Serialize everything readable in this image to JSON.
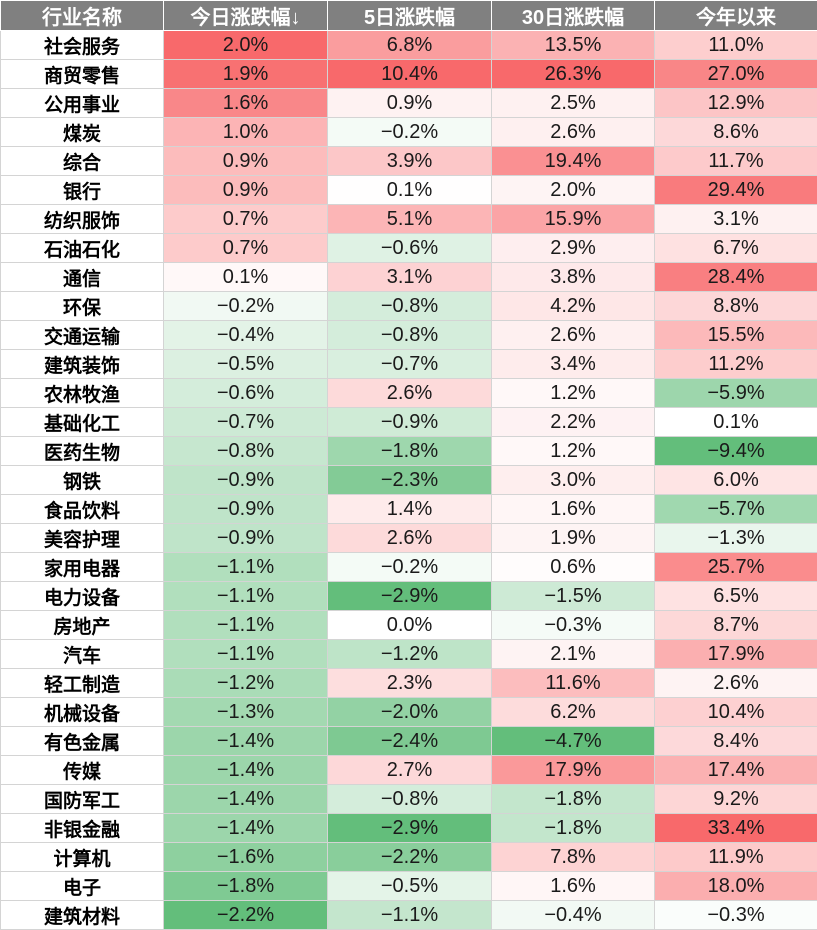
{
  "chart_data": {
    "type": "table",
    "columns": [
      "行业名称",
      "今日涨跌幅↓",
      "5日涨跌幅",
      "30日涨跌幅",
      "今年以来"
    ],
    "rows": [
      {
        "name": "社会服务",
        "values": [
          2.0,
          6.8,
          13.5,
          11.0
        ],
        "labels": [
          "2.0%",
          "6.8%",
          "13.5%",
          "11.0%"
        ]
      },
      {
        "name": "商贸零售",
        "values": [
          1.9,
          10.4,
          26.3,
          27.0
        ],
        "labels": [
          "1.9%",
          "10.4%",
          "26.3%",
          "27.0%"
        ]
      },
      {
        "name": "公用事业",
        "values": [
          1.6,
          0.9,
          2.5,
          12.9
        ],
        "labels": [
          "1.6%",
          "0.9%",
          "2.5%",
          "12.9%"
        ]
      },
      {
        "name": "煤炭",
        "values": [
          1.0,
          -0.2,
          2.6,
          8.6
        ],
        "labels": [
          "1.0%",
          "−0.2%",
          "2.6%",
          "8.6%"
        ]
      },
      {
        "name": "综合",
        "values": [
          0.9,
          3.9,
          19.4,
          11.7
        ],
        "labels": [
          "0.9%",
          "3.9%",
          "19.4%",
          "11.7%"
        ]
      },
      {
        "name": "银行",
        "values": [
          0.9,
          0.1,
          2.0,
          29.4
        ],
        "labels": [
          "0.9%",
          "0.1%",
          "2.0%",
          "29.4%"
        ]
      },
      {
        "name": "纺织服饰",
        "values": [
          0.7,
          5.1,
          15.9,
          3.1
        ],
        "labels": [
          "0.7%",
          "5.1%",
          "15.9%",
          "3.1%"
        ]
      },
      {
        "name": "石油石化",
        "values": [
          0.7,
          -0.6,
          2.9,
          6.7
        ],
        "labels": [
          "0.7%",
          "−0.6%",
          "2.9%",
          "6.7%"
        ]
      },
      {
        "name": "通信",
        "values": [
          0.1,
          3.1,
          3.8,
          28.4
        ],
        "labels": [
          "0.1%",
          "3.1%",
          "3.8%",
          "28.4%"
        ]
      },
      {
        "name": "环保",
        "values": [
          -0.2,
          -0.8,
          4.2,
          8.8
        ],
        "labels": [
          "−0.2%",
          "−0.8%",
          "4.2%",
          "8.8%"
        ]
      },
      {
        "name": "交通运输",
        "values": [
          -0.4,
          -0.8,
          2.6,
          15.5
        ],
        "labels": [
          "−0.4%",
          "−0.8%",
          "2.6%",
          "15.5%"
        ]
      },
      {
        "name": "建筑装饰",
        "values": [
          -0.5,
          -0.7,
          3.4,
          11.2
        ],
        "labels": [
          "−0.5%",
          "−0.7%",
          "3.4%",
          "11.2%"
        ]
      },
      {
        "name": "农林牧渔",
        "values": [
          -0.6,
          2.6,
          1.2,
          -5.9
        ],
        "labels": [
          "−0.6%",
          "2.6%",
          "1.2%",
          "−5.9%"
        ]
      },
      {
        "name": "基础化工",
        "values": [
          -0.7,
          -0.9,
          2.2,
          0.1
        ],
        "labels": [
          "−0.7%",
          "−0.9%",
          "2.2%",
          "0.1%"
        ]
      },
      {
        "name": "医药生物",
        "values": [
          -0.8,
          -1.8,
          1.2,
          -9.4
        ],
        "labels": [
          "−0.8%",
          "−1.8%",
          "1.2%",
          "−9.4%"
        ]
      },
      {
        "name": "钢铁",
        "values": [
          -0.9,
          -2.3,
          3.0,
          6.0
        ],
        "labels": [
          "−0.9%",
          "−2.3%",
          "3.0%",
          "6.0%"
        ]
      },
      {
        "name": "食品饮料",
        "values": [
          -0.9,
          1.4,
          1.6,
          -5.7
        ],
        "labels": [
          "−0.9%",
          "1.4%",
          "1.6%",
          "−5.7%"
        ]
      },
      {
        "name": "美容护理",
        "values": [
          -0.9,
          2.6,
          1.9,
          -1.3
        ],
        "labels": [
          "−0.9%",
          "2.6%",
          "1.9%",
          "−1.3%"
        ]
      },
      {
        "name": "家用电器",
        "values": [
          -1.1,
          -0.2,
          0.6,
          25.7
        ],
        "labels": [
          "−1.1%",
          "−0.2%",
          "0.6%",
          "25.7%"
        ]
      },
      {
        "name": "电力设备",
        "values": [
          -1.1,
          -2.9,
          -1.5,
          6.5
        ],
        "labels": [
          "−1.1%",
          "−2.9%",
          "−1.5%",
          "6.5%"
        ]
      },
      {
        "name": "房地产",
        "values": [
          -1.1,
          0.0,
          -0.3,
          8.7
        ],
        "labels": [
          "−1.1%",
          "0.0%",
          "−0.3%",
          "8.7%"
        ]
      },
      {
        "name": "汽车",
        "values": [
          -1.1,
          -1.2,
          2.1,
          17.9
        ],
        "labels": [
          "−1.1%",
          "−1.2%",
          "2.1%",
          "17.9%"
        ]
      },
      {
        "name": "轻工制造",
        "values": [
          -1.2,
          2.3,
          11.6,
          2.6
        ],
        "labels": [
          "−1.2%",
          "2.3%",
          "11.6%",
          "2.6%"
        ]
      },
      {
        "name": "机械设备",
        "values": [
          -1.3,
          -2.0,
          6.2,
          10.4
        ],
        "labels": [
          "−1.3%",
          "−2.0%",
          "6.2%",
          "10.4%"
        ]
      },
      {
        "name": "有色金属",
        "values": [
          -1.4,
          -2.4,
          -4.7,
          8.4
        ],
        "labels": [
          "−1.4%",
          "−2.4%",
          "−4.7%",
          "8.4%"
        ]
      },
      {
        "name": "传媒",
        "values": [
          -1.4,
          2.7,
          17.9,
          17.4
        ],
        "labels": [
          "−1.4%",
          "2.7%",
          "17.9%",
          "17.4%"
        ]
      },
      {
        "name": "国防军工",
        "values": [
          -1.4,
          -0.8,
          -1.8,
          9.2
        ],
        "labels": [
          "−1.4%",
          "−0.8%",
          "−1.8%",
          "9.2%"
        ]
      },
      {
        "name": "非银金融",
        "values": [
          -1.4,
          -2.9,
          -1.8,
          33.4
        ],
        "labels": [
          "−1.4%",
          "−2.9%",
          "−1.8%",
          "33.4%"
        ]
      },
      {
        "name": "计算机",
        "values": [
          -1.6,
          -2.2,
          7.8,
          11.9
        ],
        "labels": [
          "−1.6%",
          "−2.2%",
          "7.8%",
          "11.9%"
        ]
      },
      {
        "name": "电子",
        "values": [
          -1.8,
          -0.5,
          1.6,
          18.0
        ],
        "labels": [
          "−1.8%",
          "−0.5%",
          "1.6%",
          "18.0%"
        ]
      },
      {
        "name": "建筑材料",
        "values": [
          -2.2,
          -1.1,
          -0.4,
          -0.3
        ],
        "labels": [
          "−2.2%",
          "−1.1%",
          "−0.4%",
          "−0.3%"
        ]
      }
    ],
    "colors": {
      "header_bg": "#808080",
      "header_text": "#ffffff",
      "positive_max": "#f8696b",
      "negative_max": "#63be7b",
      "neutral": "#ffffff"
    }
  }
}
